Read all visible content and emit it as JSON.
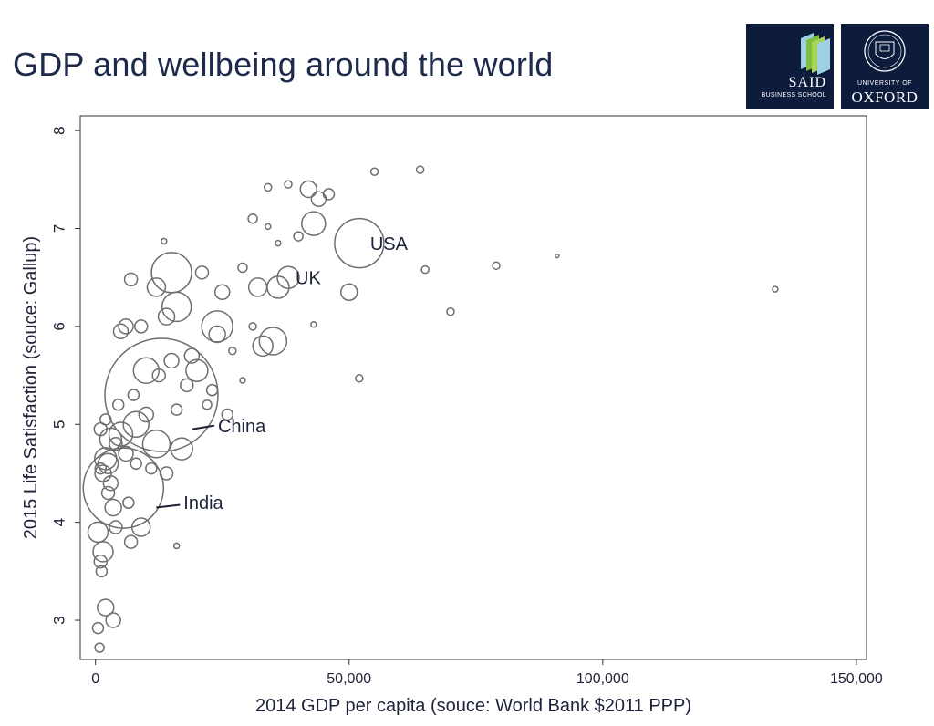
{
  "slide": {
    "title": "GDP and wellbeing around the world"
  },
  "logos": {
    "said": {
      "name": "SAID",
      "sub": "BUSINESS SCHOOL",
      "icon": "said-stripes-icon"
    },
    "oxford": {
      "university": "UNIVERSITY OF",
      "name": "OXFORD",
      "icon": "oxford-crest-icon"
    },
    "background_color": "#0d1b3c",
    "said_stripe_colors": [
      "#9fd0e6",
      "#7fbf3f",
      "#a8d35a"
    ]
  },
  "chart_data": {
    "type": "scatter",
    "xlabel": "2014 GDP per capita (souce: World Bank $2011 PPP)",
    "ylabel": "2015 Life Satisfaction (souce: Gallup)",
    "xlim": [
      -3000,
      152000
    ],
    "ylim": [
      2.6,
      8.15
    ],
    "x_ticks": [
      0,
      50000,
      100000,
      150000
    ],
    "x_tick_labels": [
      "0",
      "50,000",
      "100,000",
      "150,000"
    ],
    "y_ticks": [
      3,
      4,
      5,
      6,
      7,
      8
    ],
    "y_tick_labels": [
      "3",
      "4",
      "5",
      "6",
      "7",
      "8"
    ],
    "grid": false,
    "size_note": "bubble size proportional to population",
    "marker_color": "#6e6e6e",
    "annotations": [
      {
        "label": "USA",
        "x": 52000,
        "y": 6.85
      },
      {
        "label": "UK",
        "x": 38000,
        "y": 6.5
      },
      {
        "label": "China",
        "x": 13000,
        "y": 5.3
      },
      {
        "label": "India",
        "x": 5500,
        "y": 4.35
      }
    ],
    "points": [
      {
        "x": 5500,
        "y": 4.35,
        "r": 44
      },
      {
        "x": 13000,
        "y": 5.3,
        "r": 62
      },
      {
        "x": 52000,
        "y": 6.85,
        "r": 27
      },
      {
        "x": 38000,
        "y": 6.5,
        "r": 12
      },
      {
        "x": 15000,
        "y": 6.55,
        "r": 22
      },
      {
        "x": 10000,
        "y": 5.55,
        "r": 14
      },
      {
        "x": 16000,
        "y": 6.2,
        "r": 16
      },
      {
        "x": 24000,
        "y": 6.0,
        "r": 17
      },
      {
        "x": 35000,
        "y": 5.85,
        "r": 15
      },
      {
        "x": 43000,
        "y": 7.05,
        "r": 13
      },
      {
        "x": 36000,
        "y": 6.4,
        "r": 12
      },
      {
        "x": 33000,
        "y": 5.8,
        "r": 11
      },
      {
        "x": 50000,
        "y": 6.35,
        "r": 9
      },
      {
        "x": 42000,
        "y": 7.4,
        "r": 9
      },
      {
        "x": 44000,
        "y": 7.3,
        "r": 8
      },
      {
        "x": 46000,
        "y": 7.35,
        "r": 6
      },
      {
        "x": 32000,
        "y": 6.4,
        "r": 10
      },
      {
        "x": 25000,
        "y": 6.35,
        "r": 8
      },
      {
        "x": 20000,
        "y": 5.55,
        "r": 12
      },
      {
        "x": 17000,
        "y": 4.75,
        "r": 12
      },
      {
        "x": 12000,
        "y": 4.8,
        "r": 15
      },
      {
        "x": 8000,
        "y": 5.0,
        "r": 14
      },
      {
        "x": 5000,
        "y": 4.9,
        "r": 13
      },
      {
        "x": 3000,
        "y": 4.85,
        "r": 12
      },
      {
        "x": 2500,
        "y": 4.6,
        "r": 11
      },
      {
        "x": 1500,
        "y": 4.5,
        "r": 9
      },
      {
        "x": 2000,
        "y": 4.65,
        "r": 12
      },
      {
        "x": 1000,
        "y": 4.95,
        "r": 7
      },
      {
        "x": 3000,
        "y": 4.4,
        "r": 8
      },
      {
        "x": 3500,
        "y": 4.15,
        "r": 9
      },
      {
        "x": 4000,
        "y": 3.95,
        "r": 7
      },
      {
        "x": 9000,
        "y": 3.95,
        "r": 10
      },
      {
        "x": 7000,
        "y": 3.8,
        "r": 7
      },
      {
        "x": 500,
        "y": 3.9,
        "r": 11
      },
      {
        "x": 1500,
        "y": 3.7,
        "r": 11
      },
      {
        "x": 1000,
        "y": 3.6,
        "r": 7
      },
      {
        "x": 1200,
        "y": 3.5,
        "r": 6
      },
      {
        "x": 2000,
        "y": 3.13,
        "r": 9
      },
      {
        "x": 3500,
        "y": 3.0,
        "r": 8
      },
      {
        "x": 500,
        "y": 2.92,
        "r": 6
      },
      {
        "x": 800,
        "y": 2.72,
        "r": 5
      },
      {
        "x": 5000,
        "y": 5.95,
        "r": 8
      },
      {
        "x": 7000,
        "y": 6.48,
        "r": 7
      },
      {
        "x": 12000,
        "y": 6.4,
        "r": 10
      },
      {
        "x": 6000,
        "y": 6.0,
        "r": 8
      },
      {
        "x": 9000,
        "y": 6.0,
        "r": 7
      },
      {
        "x": 14000,
        "y": 6.1,
        "r": 9
      },
      {
        "x": 21000,
        "y": 6.55,
        "r": 7
      },
      {
        "x": 24000,
        "y": 5.92,
        "r": 9
      },
      {
        "x": 19000,
        "y": 5.7,
        "r": 8
      },
      {
        "x": 15000,
        "y": 5.65,
        "r": 8
      },
      {
        "x": 10000,
        "y": 5.1,
        "r": 8
      },
      {
        "x": 14000,
        "y": 4.5,
        "r": 7
      },
      {
        "x": 16000,
        "y": 5.15,
        "r": 6
      },
      {
        "x": 18000,
        "y": 5.4,
        "r": 7
      },
      {
        "x": 23000,
        "y": 5.35,
        "r": 6
      },
      {
        "x": 26000,
        "y": 5.1,
        "r": 6
      },
      {
        "x": 6000,
        "y": 4.7,
        "r": 8
      },
      {
        "x": 4000,
        "y": 4.8,
        "r": 7
      },
      {
        "x": 2000,
        "y": 5.05,
        "r": 6
      },
      {
        "x": 1000,
        "y": 4.55,
        "r": 6
      },
      {
        "x": 6500,
        "y": 4.2,
        "r": 6
      },
      {
        "x": 2500,
        "y": 4.3,
        "r": 7
      },
      {
        "x": 29000,
        "y": 6.6,
        "r": 5
      },
      {
        "x": 31000,
        "y": 7.1,
        "r": 5
      },
      {
        "x": 34000,
        "y": 7.42,
        "r": 4
      },
      {
        "x": 38000,
        "y": 7.45,
        "r": 4
      },
      {
        "x": 55000,
        "y": 7.58,
        "r": 4
      },
      {
        "x": 64000,
        "y": 7.6,
        "r": 4
      },
      {
        "x": 65000,
        "y": 6.58,
        "r": 4
      },
      {
        "x": 79000,
        "y": 6.62,
        "r": 4
      },
      {
        "x": 70000,
        "y": 6.15,
        "r": 4
      },
      {
        "x": 52000,
        "y": 5.47,
        "r": 4
      },
      {
        "x": 134000,
        "y": 6.38,
        "r": 3
      },
      {
        "x": 91000,
        "y": 6.72,
        "r": 2
      },
      {
        "x": 40000,
        "y": 6.92,
        "r": 5
      },
      {
        "x": 36000,
        "y": 6.85,
        "r": 3
      },
      {
        "x": 43000,
        "y": 6.02,
        "r": 3
      },
      {
        "x": 34000,
        "y": 7.02,
        "r": 3
      },
      {
        "x": 13500,
        "y": 6.87,
        "r": 3
      },
      {
        "x": 16000,
        "y": 3.76,
        "r": 3
      },
      {
        "x": 29000,
        "y": 5.45,
        "r": 3
      },
      {
        "x": 27000,
        "y": 5.75,
        "r": 4
      },
      {
        "x": 31000,
        "y": 6.0,
        "r": 4
      },
      {
        "x": 22000,
        "y": 5.2,
        "r": 5
      },
      {
        "x": 8000,
        "y": 4.6,
        "r": 6
      },
      {
        "x": 11000,
        "y": 4.55,
        "r": 6
      },
      {
        "x": 4500,
        "y": 5.2,
        "r": 6
      },
      {
        "x": 7500,
        "y": 5.3,
        "r": 6
      },
      {
        "x": 12500,
        "y": 5.5,
        "r": 7
      }
    ]
  }
}
